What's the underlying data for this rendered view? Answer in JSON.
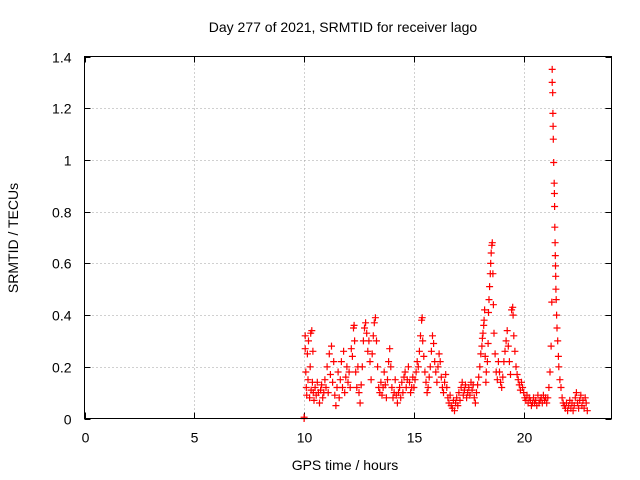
{
  "chart_data": {
    "type": "scatter",
    "title": "Day 277 of 2021, SRMTID for receiver lago",
    "xlabel": "GPS time / hours",
    "ylabel": "SRMTID / TECUs",
    "xlim": [
      0,
      24
    ],
    "ylim": [
      0,
      1.4
    ],
    "xticks": [
      0,
      5,
      10,
      15,
      20
    ],
    "xtick_labels": [
      "0",
      "5",
      "10",
      "15",
      "20"
    ],
    "yticks": [
      0,
      0.2,
      0.4,
      0.6,
      0.8,
      1.0,
      1.2,
      1.4
    ],
    "ytick_labels": [
      "0",
      "0.2",
      "0.4",
      "0.6",
      "0.8",
      "1",
      "1.2",
      "1.4"
    ],
    "grid": true,
    "marker": "plus",
    "color": "#ff0000",
    "series": [
      {
        "name": "SRMTID",
        "points": [
          [
            10.0,
            0.005
          ],
          [
            10.0,
            0.0
          ],
          [
            10.05,
            0.32
          ],
          [
            10.05,
            0.27
          ],
          [
            10.08,
            0.18
          ],
          [
            10.1,
            0.12
          ],
          [
            10.12,
            0.09
          ],
          [
            10.15,
            0.25
          ],
          [
            10.18,
            0.15
          ],
          [
            10.2,
            0.3
          ],
          [
            10.25,
            0.08
          ],
          [
            10.28,
            0.2
          ],
          [
            10.3,
            0.33
          ],
          [
            10.32,
            0.11
          ],
          [
            10.35,
            0.34
          ],
          [
            10.38,
            0.14
          ],
          [
            10.4,
            0.26
          ],
          [
            10.42,
            0.1
          ],
          [
            10.45,
            0.07
          ],
          [
            10.5,
            0.12
          ],
          [
            10.55,
            0.09
          ],
          [
            10.6,
            0.14
          ],
          [
            10.65,
            0.1
          ],
          [
            10.7,
            0.06
          ],
          [
            10.75,
            0.11
          ],
          [
            10.8,
            0.13
          ],
          [
            10.85,
            0.08
          ],
          [
            10.9,
            0.1
          ],
          [
            10.95,
            0.15
          ],
          [
            11.0,
            0.12
          ],
          [
            11.05,
            0.2
          ],
          [
            11.1,
            0.1
          ],
          [
            11.15,
            0.25
          ],
          [
            11.2,
            0.17
          ],
          [
            11.25,
            0.28
          ],
          [
            11.3,
            0.14
          ],
          [
            11.35,
            0.22
          ],
          [
            11.4,
            0.09
          ],
          [
            11.45,
            0.05
          ],
          [
            11.5,
            0.12
          ],
          [
            11.55,
            0.18
          ],
          [
            11.6,
            0.08
          ],
          [
            11.65,
            0.15
          ],
          [
            11.7,
            0.22
          ],
          [
            11.75,
            0.12
          ],
          [
            11.8,
            0.26
          ],
          [
            11.85,
            0.1
          ],
          [
            11.9,
            0.16
          ],
          [
            11.95,
            0.2
          ],
          [
            12.0,
            0.14
          ],
          [
            12.05,
            0.18
          ],
          [
            12.1,
            0.12
          ],
          [
            12.15,
            0.27
          ],
          [
            12.2,
            0.24
          ],
          [
            12.25,
            0.35
          ],
          [
            12.28,
            0.36
          ],
          [
            12.3,
            0.3
          ],
          [
            12.35,
            0.18
          ],
          [
            12.4,
            0.12
          ],
          [
            12.45,
            0.2
          ],
          [
            12.5,
            0.1
          ],
          [
            12.55,
            0.06
          ],
          [
            12.6,
            0.13
          ],
          [
            12.65,
            0.2
          ],
          [
            12.7,
            0.3
          ],
          [
            12.75,
            0.35
          ],
          [
            12.8,
            0.37
          ],
          [
            12.85,
            0.33
          ],
          [
            12.9,
            0.26
          ],
          [
            12.95,
            0.3
          ],
          [
            13.0,
            0.22
          ],
          [
            13.05,
            0.15
          ],
          [
            13.1,
            0.25
          ],
          [
            13.15,
            0.32
          ],
          [
            13.2,
            0.37
          ],
          [
            13.25,
            0.39
          ],
          [
            13.3,
            0.3
          ],
          [
            13.35,
            0.2
          ],
          [
            13.4,
            0.12
          ],
          [
            13.45,
            0.1
          ],
          [
            13.5,
            0.14
          ],
          [
            13.55,
            0.09
          ],
          [
            13.6,
            0.12
          ],
          [
            13.65,
            0.18
          ],
          [
            13.7,
            0.13
          ],
          [
            13.75,
            0.08
          ],
          [
            13.8,
            0.15
          ],
          [
            13.85,
            0.22
          ],
          [
            13.9,
            0.27
          ],
          [
            13.95,
            0.2
          ],
          [
            14.0,
            0.12
          ],
          [
            14.05,
            0.08
          ],
          [
            14.1,
            0.1
          ],
          [
            14.15,
            0.15
          ],
          [
            14.2,
            0.09
          ],
          [
            14.25,
            0.06
          ],
          [
            14.3,
            0.1
          ],
          [
            14.35,
            0.12
          ],
          [
            14.4,
            0.08
          ],
          [
            14.45,
            0.14
          ],
          [
            14.5,
            0.1
          ],
          [
            14.55,
            0.16
          ],
          [
            14.6,
            0.18
          ],
          [
            14.65,
            0.12
          ],
          [
            14.7,
            0.15
          ],
          [
            14.75,
            0.2
          ],
          [
            14.8,
            0.14
          ],
          [
            14.85,
            0.1
          ],
          [
            14.9,
            0.12
          ],
          [
            14.95,
            0.16
          ],
          [
            15.0,
            0.12
          ],
          [
            15.05,
            0.15
          ],
          [
            15.1,
            0.18
          ],
          [
            15.15,
            0.22
          ],
          [
            15.2,
            0.2
          ],
          [
            15.25,
            0.26
          ],
          [
            15.3,
            0.32
          ],
          [
            15.35,
            0.38
          ],
          [
            15.38,
            0.39
          ],
          [
            15.4,
            0.3
          ],
          [
            15.45,
            0.24
          ],
          [
            15.5,
            0.18
          ],
          [
            15.55,
            0.14
          ],
          [
            15.6,
            0.1
          ],
          [
            15.65,
            0.12
          ],
          [
            15.7,
            0.16
          ],
          [
            15.75,
            0.2
          ],
          [
            15.8,
            0.26
          ],
          [
            15.85,
            0.32
          ],
          [
            15.9,
            0.29
          ],
          [
            15.95,
            0.22
          ],
          [
            16.0,
            0.18
          ],
          [
            16.05,
            0.14
          ],
          [
            16.1,
            0.2
          ],
          [
            16.15,
            0.25
          ],
          [
            16.2,
            0.22
          ],
          [
            16.25,
            0.16
          ],
          [
            16.3,
            0.12
          ],
          [
            16.35,
            0.1
          ],
          [
            16.4,
            0.14
          ],
          [
            16.45,
            0.17
          ],
          [
            16.5,
            0.12
          ],
          [
            16.55,
            0.08
          ],
          [
            16.6,
            0.06
          ],
          [
            16.65,
            0.09
          ],
          [
            16.7,
            0.05
          ],
          [
            16.75,
            0.04
          ],
          [
            16.8,
            0.07
          ],
          [
            16.85,
            0.03
          ],
          [
            16.9,
            0.06
          ],
          [
            16.95,
            0.08
          ],
          [
            17.0,
            0.05
          ],
          [
            17.05,
            0.1
          ],
          [
            17.1,
            0.07
          ],
          [
            17.15,
            0.12
          ],
          [
            17.2,
            0.14
          ],
          [
            17.25,
            0.09
          ],
          [
            17.3,
            0.11
          ],
          [
            17.35,
            0.13
          ],
          [
            17.4,
            0.08
          ],
          [
            17.45,
            0.1
          ],
          [
            17.5,
            0.12
          ],
          [
            17.55,
            0.09
          ],
          [
            17.6,
            0.14
          ],
          [
            17.65,
            0.11
          ],
          [
            17.7,
            0.13
          ],
          [
            17.75,
            0.08
          ],
          [
            17.8,
            0.06
          ],
          [
            17.85,
            0.1
          ],
          [
            17.9,
            0.13
          ],
          [
            17.95,
            0.16
          ],
          [
            18.0,
            0.2
          ],
          [
            18.05,
            0.25
          ],
          [
            18.1,
            0.28
          ],
          [
            18.12,
            0.31
          ],
          [
            18.15,
            0.33
          ],
          [
            18.18,
            0.36
          ],
          [
            18.2,
            0.38
          ],
          [
            18.22,
            0.42
          ],
          [
            18.25,
            0.24
          ],
          [
            18.28,
            0.14
          ],
          [
            18.3,
            0.18
          ],
          [
            18.35,
            0.22
          ],
          [
            18.38,
            0.29
          ],
          [
            18.4,
            0.41
          ],
          [
            18.42,
            0.46
          ],
          [
            18.45,
            0.51
          ],
          [
            18.48,
            0.56
          ],
          [
            18.5,
            0.6
          ],
          [
            18.52,
            0.64
          ],
          [
            18.55,
            0.67
          ],
          [
            18.57,
            0.68
          ],
          [
            18.6,
            0.56
          ],
          [
            18.62,
            0.44
          ],
          [
            18.65,
            0.33
          ],
          [
            18.7,
            0.25
          ],
          [
            18.75,
            0.18
          ],
          [
            18.8,
            0.15
          ],
          [
            18.85,
            0.22
          ],
          [
            18.9,
            0.18
          ],
          [
            18.95,
            0.14
          ],
          [
            19.0,
            0.12
          ],
          [
            19.05,
            0.16
          ],
          [
            19.1,
            0.22
          ],
          [
            19.15,
            0.26
          ],
          [
            19.2,
            0.3
          ],
          [
            19.25,
            0.34
          ],
          [
            19.3,
            0.28
          ],
          [
            19.35,
            0.22
          ],
          [
            19.4,
            0.17
          ],
          [
            19.45,
            0.42
          ],
          [
            19.5,
            0.43
          ],
          [
            19.52,
            0.4
          ],
          [
            19.55,
            0.32
          ],
          [
            19.6,
            0.26
          ],
          [
            19.65,
            0.2
          ],
          [
            19.7,
            0.17
          ],
          [
            19.75,
            0.15
          ],
          [
            19.8,
            0.13
          ],
          [
            19.85,
            0.11
          ],
          [
            19.9,
            0.14
          ],
          [
            19.95,
            0.12
          ],
          [
            20.0,
            0.1
          ],
          [
            20.05,
            0.08
          ],
          [
            20.1,
            0.07
          ],
          [
            20.15,
            0.09
          ],
          [
            20.2,
            0.06
          ],
          [
            20.25,
            0.08
          ],
          [
            20.3,
            0.07
          ],
          [
            20.35,
            0.05
          ],
          [
            20.4,
            0.06
          ],
          [
            20.45,
            0.08
          ],
          [
            20.5,
            0.06
          ],
          [
            20.55,
            0.07
          ],
          [
            20.6,
            0.05
          ],
          [
            20.65,
            0.09
          ],
          [
            20.7,
            0.06
          ],
          [
            20.75,
            0.07
          ],
          [
            20.8,
            0.08
          ],
          [
            20.85,
            0.06
          ],
          [
            20.9,
            0.09
          ],
          [
            20.95,
            0.07
          ],
          [
            21.0,
            0.08
          ],
          [
            21.05,
            0.06
          ],
          [
            21.1,
            0.08
          ],
          [
            21.15,
            0.12
          ],
          [
            21.2,
            0.18
          ],
          [
            21.25,
            0.28
          ],
          [
            21.28,
            0.45
          ],
          [
            21.3,
            1.35
          ],
          [
            21.3,
            1.3
          ],
          [
            21.32,
            1.26
          ],
          [
            21.33,
            1.18
          ],
          [
            21.34,
            1.13
          ],
          [
            21.35,
            1.08
          ],
          [
            21.37,
            0.99
          ],
          [
            21.39,
            0.91
          ],
          [
            21.4,
            0.87
          ],
          [
            21.41,
            0.82
          ],
          [
            21.42,
            0.74
          ],
          [
            21.43,
            0.68
          ],
          [
            21.44,
            0.63
          ],
          [
            21.45,
            0.59
          ],
          [
            21.46,
            0.55
          ],
          [
            21.47,
            0.5
          ],
          [
            21.48,
            0.46
          ],
          [
            21.5,
            0.4
          ],
          [
            21.52,
            0.35
          ],
          [
            21.55,
            0.3
          ],
          [
            21.58,
            0.24
          ],
          [
            21.6,
            0.2
          ],
          [
            21.65,
            0.15
          ],
          [
            21.7,
            0.12
          ],
          [
            21.75,
            0.08
          ],
          [
            21.8,
            0.06
          ],
          [
            21.85,
            0.05
          ],
          [
            21.9,
            0.04
          ],
          [
            21.95,
            0.06
          ],
          [
            22.0,
            0.03
          ],
          [
            22.05,
            0.05
          ],
          [
            22.1,
            0.07
          ],
          [
            22.15,
            0.04
          ],
          [
            22.2,
            0.06
          ],
          [
            22.25,
            0.03
          ],
          [
            22.3,
            0.05
          ],
          [
            22.35,
            0.08
          ],
          [
            22.4,
            0.1
          ],
          [
            22.45,
            0.06
          ],
          [
            22.5,
            0.04
          ],
          [
            22.55,
            0.07
          ],
          [
            22.6,
            0.09
          ],
          [
            22.65,
            0.05
          ],
          [
            22.7,
            0.07
          ],
          [
            22.75,
            0.04
          ],
          [
            22.8,
            0.08
          ],
          [
            22.85,
            0.06
          ],
          [
            22.9,
            0.03
          ]
        ]
      }
    ]
  }
}
